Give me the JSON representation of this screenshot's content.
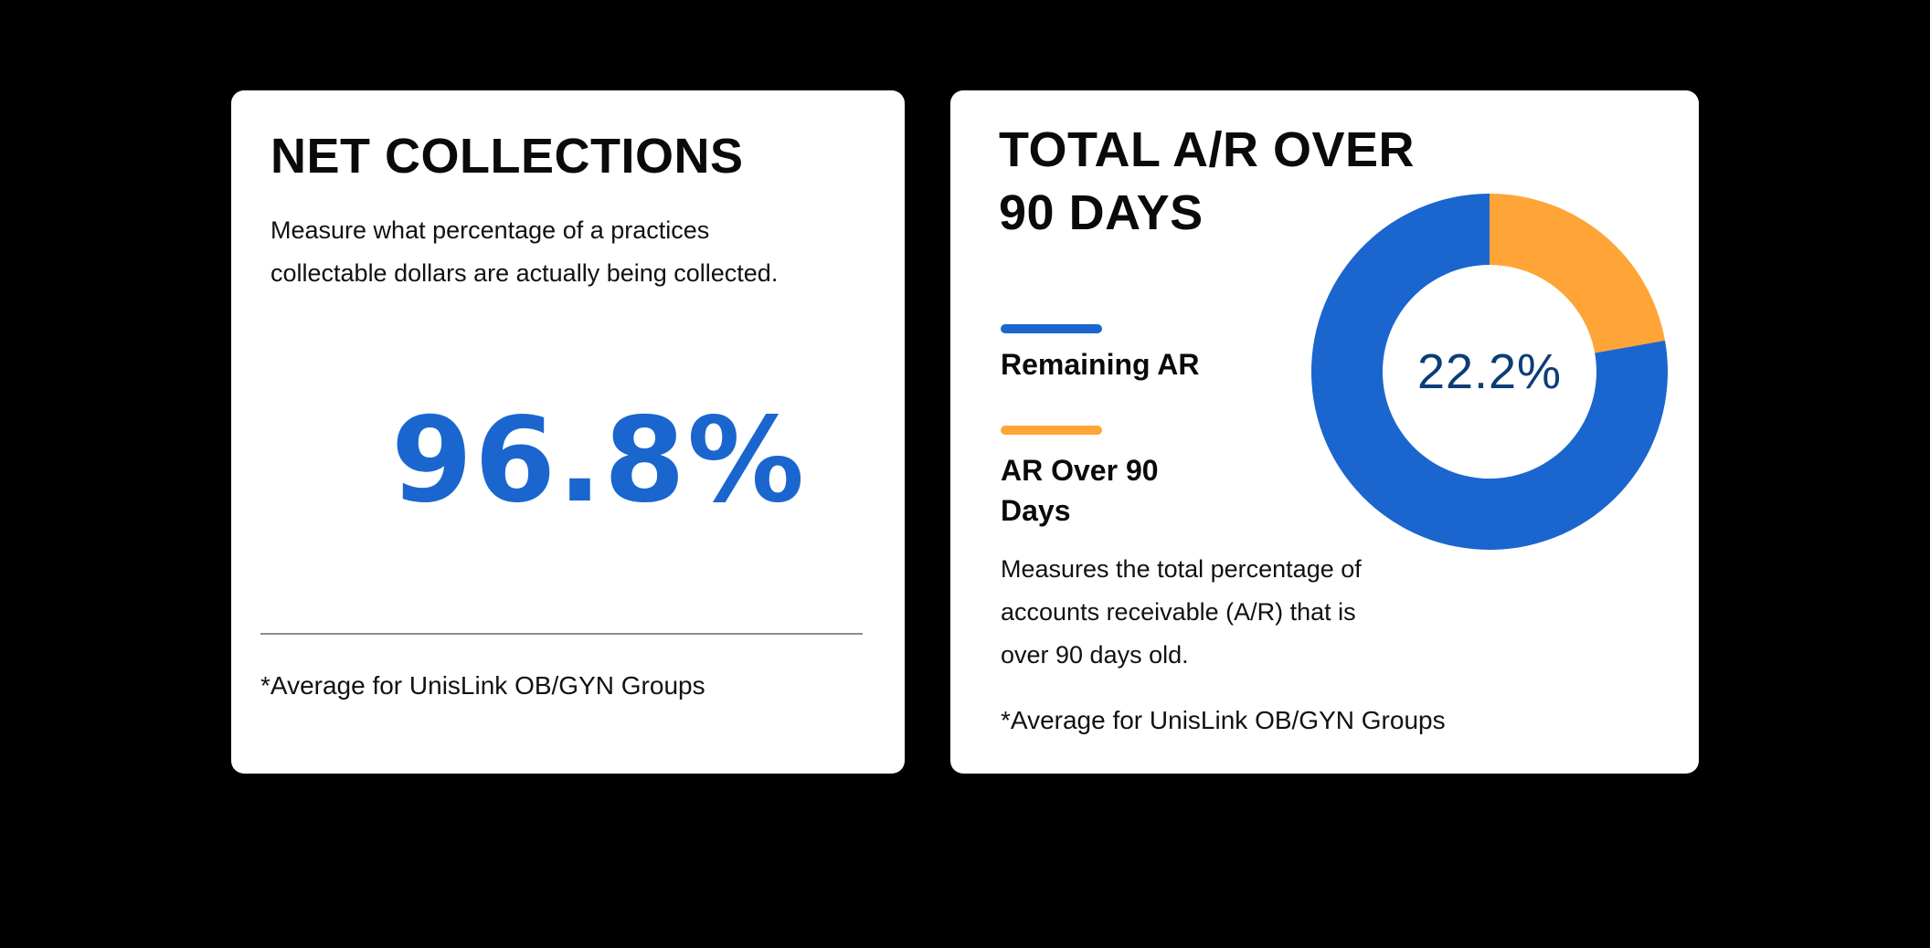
{
  "colors": {
    "background": "#000000",
    "card": "#ffffff",
    "primary_blue": "#1A66CE",
    "accent_orange": "#FFA537",
    "center_text_navy": "#0B3D78",
    "divider_gray": "#8C8C8C"
  },
  "net_collections": {
    "title": "NET COLLECTIONS",
    "description_lines": [
      "Measure what percentage of a practices",
      "collectable dollars are actually being collected."
    ],
    "value": "96.8%",
    "footnote": "*Average for UnisLink OB/GYN Groups"
  },
  "ar_over_90": {
    "title_lines": [
      "TOTAL A/R OVER",
      "90 DAYS"
    ],
    "legend": [
      {
        "label_lines": [
          "Remaining AR"
        ],
        "color": "#1A66CE"
      },
      {
        "label_lines": [
          "AR Over 90",
          "Days"
        ],
        "color": "#FFA537"
      }
    ],
    "center_value": "22.2%",
    "description_lines": [
      "Measures the total percentage of",
      "accounts receivable (A/R) that is",
      "over 90 days old."
    ],
    "footnote": "*Average for UnisLink OB/GYN Groups"
  },
  "chart_data": [
    {
      "type": "table",
      "title": "NET COLLECTIONS",
      "subtitle": "Measure what percentage of a practices collectable dollars are actually being collected.",
      "values": [
        {
          "label": "Net Collections",
          "value": 96.8,
          "unit": "%"
        }
      ],
      "annotations": [
        "*Average for UnisLink OB/GYN Groups"
      ]
    },
    {
      "type": "pie",
      "variant": "donut",
      "title": "TOTAL A/R OVER 90 DAYS",
      "categories": [
        "Remaining AR",
        "AR Over 90 Days"
      ],
      "values": [
        77.8,
        22.2
      ],
      "colors": [
        "#1A66CE",
        "#FFA537"
      ],
      "center_label": "22.2%",
      "start_angle_deg": 0,
      "direction": "clockwise",
      "legend_position": "left",
      "annotations": [
        "Measures the total percentage of accounts receivable (A/R) that is over 90 days old.",
        "*Average for UnisLink OB/GYN Groups"
      ]
    }
  ]
}
